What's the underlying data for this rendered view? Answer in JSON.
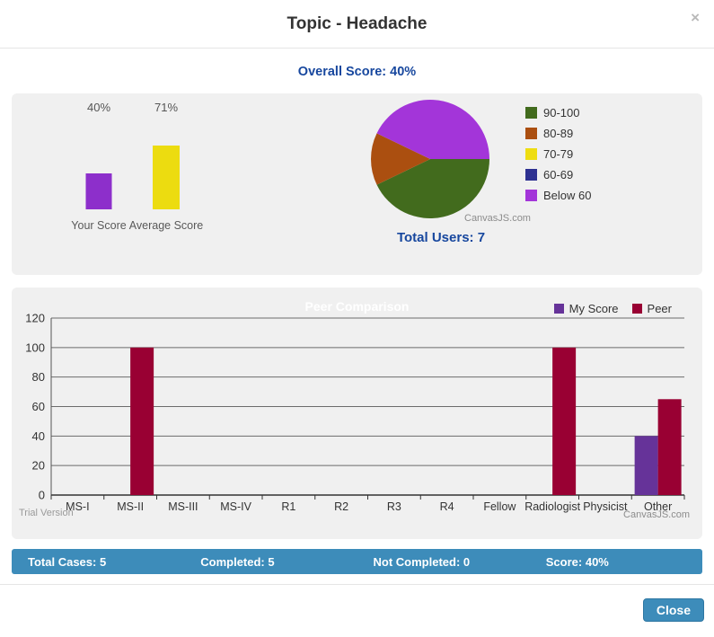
{
  "header": {
    "title": "Topic - Headache",
    "close_glyph": "×"
  },
  "overall": {
    "label": "Overall Score:",
    "value": "40%"
  },
  "pie_footer": {
    "label": "Total Users:",
    "value": "7"
  },
  "stats": {
    "items": [
      {
        "label": "Total Cases:",
        "value": "5"
      },
      {
        "label": "Completed:",
        "value": "5"
      },
      {
        "label": "Not Completed:",
        "value": "0"
      },
      {
        "label": "Score:",
        "value": "40%"
      }
    ]
  },
  "footer": {
    "close_label": "Close"
  },
  "colors": {
    "accent_blue": "#3d8cba",
    "title_blue": "#17479e",
    "panel_bg": "#f0f0f0",
    "gridline": "#6b6b6b",
    "axis": "#333333"
  },
  "chart_data": [
    {
      "type": "bar",
      "name": "score-summary",
      "categories": [
        "Your Score",
        "Average Score"
      ],
      "values": [
        40,
        71
      ],
      "value_labels": [
        "40%",
        "71%"
      ],
      "colors": [
        "#8d2fcb",
        "#ecdc10"
      ],
      "ylim": [
        0,
        100
      ],
      "grid": false
    },
    {
      "type": "pie",
      "name": "score-distribution",
      "labels": [
        "90-100",
        "80-89",
        "70-79",
        "60-69",
        "Below 60"
      ],
      "values": [
        3,
        1,
        0,
        0,
        3
      ],
      "colors": [
        "#426b1d",
        "#ab4f10",
        "#eedd11",
        "#2e3191",
        "#a335d9"
      ],
      "legend_position": "right",
      "credit": "CanvasJS.com",
      "total_users": 7
    },
    {
      "type": "bar",
      "name": "peer-comparison",
      "title": "Peer Comparison",
      "categories": [
        "MS-I",
        "MS-II",
        "MS-III",
        "MS-IV",
        "R1",
        "R2",
        "R3",
        "R4",
        "Fellow",
        "Radiologist",
        "Physicist",
        "Other"
      ],
      "series": [
        {
          "name": "My Score",
          "color": "#663399",
          "values": [
            0,
            0,
            0,
            0,
            0,
            0,
            0,
            0,
            0,
            0,
            0,
            40
          ]
        },
        {
          "name": "Peer",
          "color": "#990033",
          "values": [
            0,
            100,
            0,
            0,
            0,
            0,
            0,
            0,
            0,
            100,
            0,
            65
          ]
        }
      ],
      "ylim": [
        0,
        120
      ],
      "yticks": [
        0,
        20,
        40,
        60,
        80,
        100,
        120
      ],
      "grid": true,
      "legend_position": "top-right",
      "watermark": "Trial Version",
      "credit": "CanvasJS.com"
    }
  ]
}
